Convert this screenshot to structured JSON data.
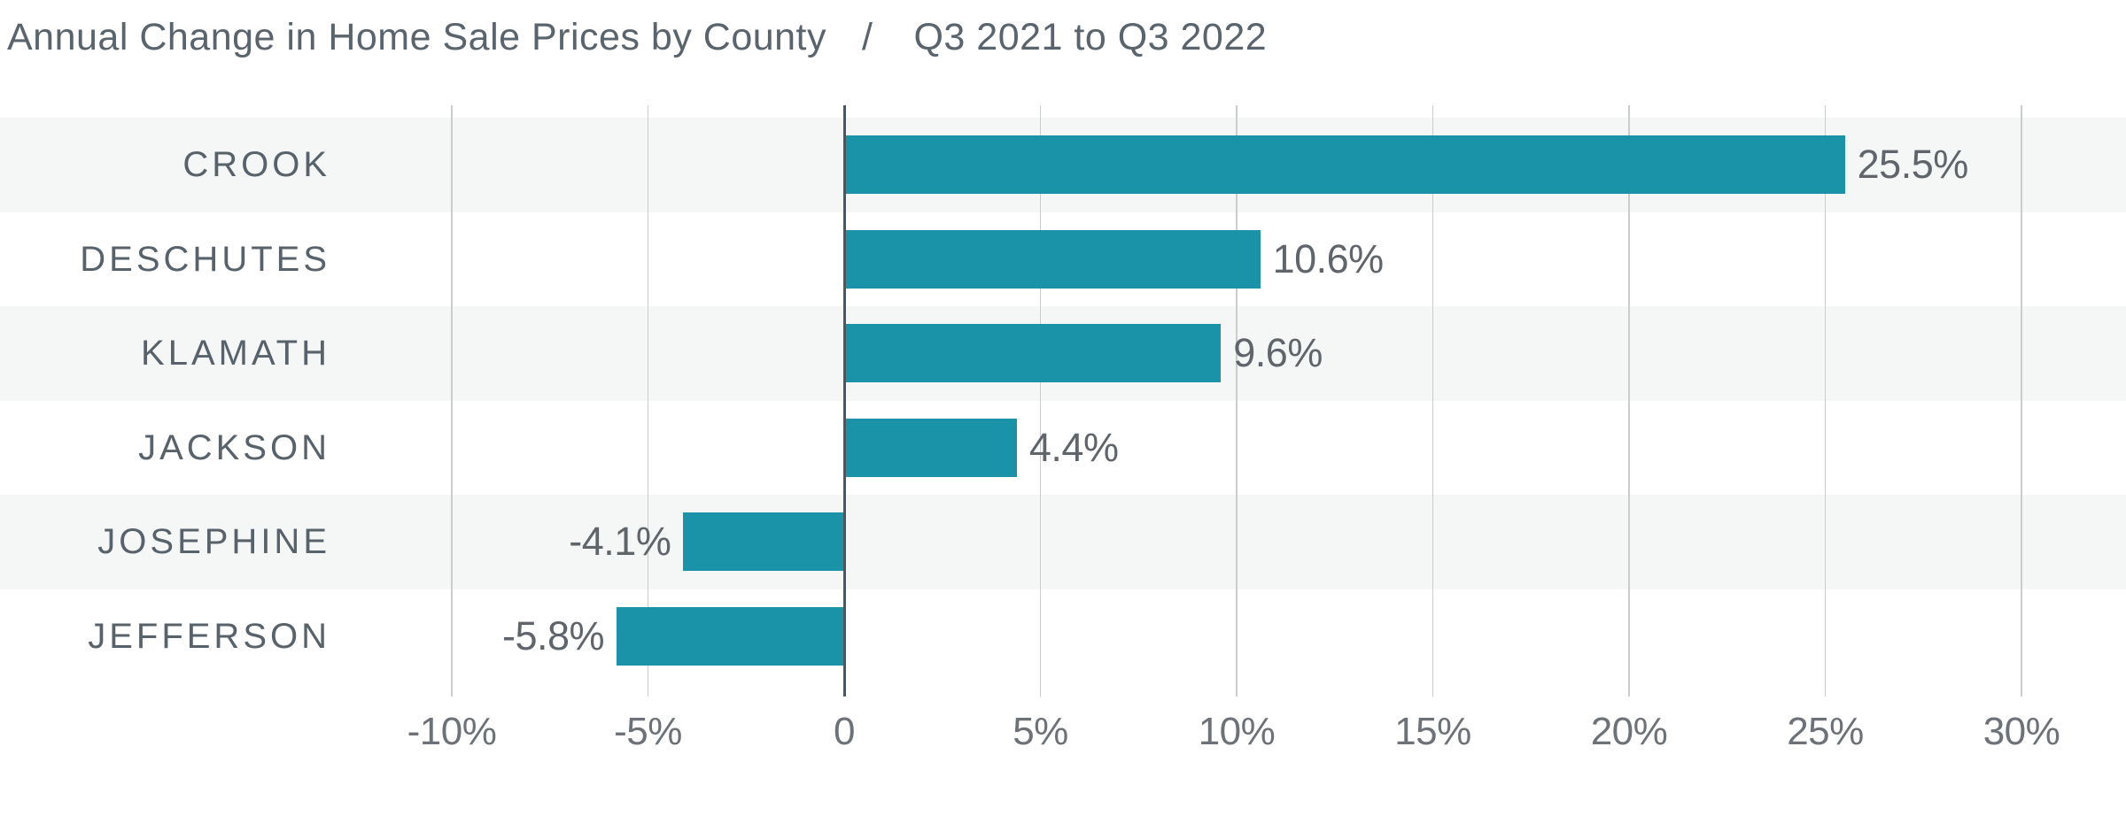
{
  "title": {
    "part1": "Annual Change in Home Sale Prices by County",
    "separator": "/",
    "part2": "Q3 2021 to Q3 2022"
  },
  "chart_data": {
    "type": "bar",
    "orientation": "horizontal",
    "title": "Annual Change in Home Sale Prices by County / Q3 2021 to Q3 2022",
    "categories": [
      "CROOK",
      "DESCHUTES",
      "KLAMATH",
      "JACKSON",
      "JOSEPHINE",
      "JEFFERSON"
    ],
    "values": [
      25.5,
      10.6,
      9.6,
      4.4,
      -4.1,
      -5.8
    ],
    "value_labels": [
      "25.5%",
      "10.6%",
      "9.6%",
      "4.4%",
      "-4.1%",
      "-5.8%"
    ],
    "x_ticks": [
      {
        "value": -10,
        "label": "-10%"
      },
      {
        "value": -5,
        "label": "-5%"
      },
      {
        "value": 0,
        "label": "0"
      },
      {
        "value": 5,
        "label": "5%"
      },
      {
        "value": 10,
        "label": "10%"
      },
      {
        "value": 15,
        "label": "15%"
      },
      {
        "value": 20,
        "label": "20%"
      },
      {
        "value": 25,
        "label": "25%"
      },
      {
        "value": 30,
        "label": "30%"
      }
    ],
    "xlim": [
      -10,
      30
    ],
    "grid": "vertical",
    "zero_axis": true,
    "row_banding": "alternating",
    "legend": "none",
    "colors": {
      "bar": "#1a92a8",
      "stripe": "#f5f6f6",
      "gridline": "#caccce",
      "zero_line": "#4d565c",
      "title_text": "#5a646c",
      "category_text": "#57626a",
      "value_text": "#5f656a",
      "tick_text": "#6c7277",
      "background": "#ffffff"
    }
  }
}
